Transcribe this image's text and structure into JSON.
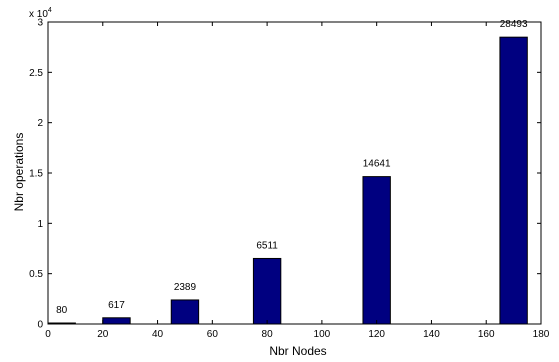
{
  "chart_data": {
    "type": "bar",
    "x": [
      5,
      25,
      50,
      80,
      120,
      170
    ],
    "values": [
      80,
      617,
      2389,
      6511,
      14641,
      28493
    ],
    "data_labels": [
      "80",
      "617",
      "2389",
      "6511",
      "14641",
      "28493"
    ],
    "xlabel": "Nbr Nodes",
    "ylabel": "Nbr operations",
    "xlim": [
      0,
      180
    ],
    "ylim": [
      0,
      30000
    ],
    "xticks": [
      0,
      20,
      40,
      60,
      80,
      100,
      120,
      140,
      160,
      180
    ],
    "xtick_labels": [
      "0",
      "20",
      "40",
      "60",
      "80",
      "100",
      "120",
      "140",
      "160",
      "180"
    ],
    "yticks": [
      0,
      5000,
      10000,
      15000,
      20000,
      25000,
      30000
    ],
    "ytick_labels": [
      "0",
      "0.5",
      "1",
      "1.5",
      "2",
      "2.5",
      "3"
    ],
    "y_exponent_base": "x 10",
    "y_exponent_power": "4",
    "bar_width": 10,
    "bar_color": "#000080",
    "grid": false,
    "legend": "none"
  }
}
